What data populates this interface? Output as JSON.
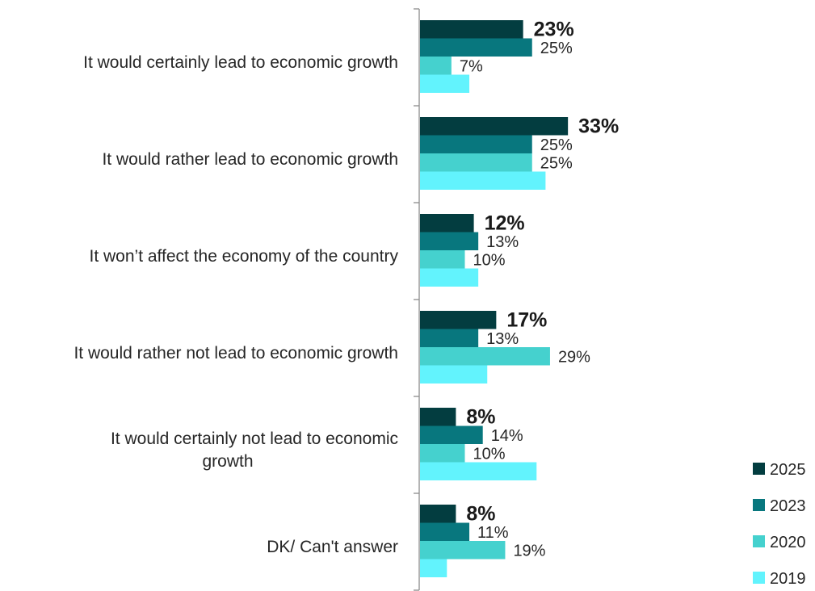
{
  "chart_data": {
    "type": "bar",
    "orientation": "horizontal",
    "categories": [
      [
        "It would certainly lead to economic growth"
      ],
      [
        "It would rather lead to economic growth"
      ],
      [
        "It won’t affect the economy of the country"
      ],
      [
        "It would rather not lead to economic growth"
      ],
      [
        "It would certainly not lead to economic",
        "growth"
      ],
      [
        "DK/ Can't answer"
      ]
    ],
    "series": [
      {
        "name": "2025",
        "color": "#033d40",
        "values": [
          23,
          33,
          12,
          17,
          8,
          8
        ],
        "labels": [
          "23%",
          "33%",
          "12%",
          "17%",
          "8%",
          "8%"
        ],
        "bold_labels": true
      },
      {
        "name": "2023",
        "color": "#08777e",
        "values": [
          25,
          25,
          13,
          13,
          14,
          11
        ],
        "labels": [
          "25%",
          "25%",
          "13%",
          "13%",
          "14%",
          "11%"
        ]
      },
      {
        "name": "2020",
        "color": "#45d1ce",
        "values": [
          7,
          25,
          10,
          29,
          10,
          19
        ],
        "labels": [
          "7%",
          "25%",
          "10%",
          "29%",
          "10%",
          "19%"
        ]
      },
      {
        "name": "2019",
        "color": "#62f3fd",
        "values": [
          11,
          28,
          13,
          15,
          26,
          6
        ],
        "labels": [
          "",
          "",
          "",
          "",
          "",
          ""
        ]
      }
    ],
    "xlim": [
      0,
      33
    ],
    "legend_position": "bottom-right",
    "grid": false
  }
}
